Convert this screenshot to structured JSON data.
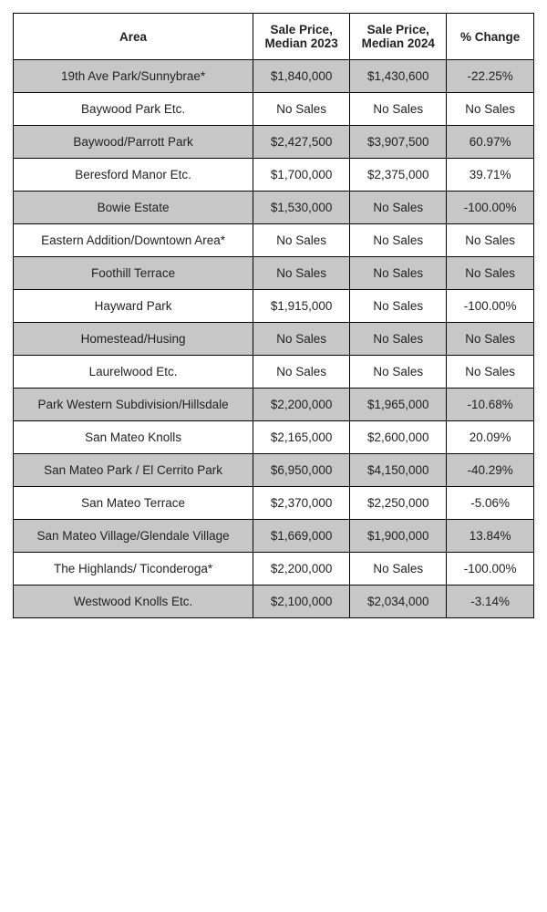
{
  "table": {
    "columns": [
      "Area",
      "Sale Price, Median 2023",
      "Sale Price, Median 2024",
      "% Change"
    ],
    "rows": [
      {
        "area": "19th Ave Park/Sunnybrae*",
        "p2023": "$1,840,000",
        "p2024": "$1,430,600",
        "change": "-22.25%"
      },
      {
        "area": "Baywood Park Etc.",
        "p2023": "No Sales",
        "p2024": "No Sales",
        "change": "No Sales"
      },
      {
        "area": "Baywood/Parrott Park",
        "p2023": "$2,427,500",
        "p2024": "$3,907,500",
        "change": "60.97%"
      },
      {
        "area": "Beresford Manor Etc.",
        "p2023": "$1,700,000",
        "p2024": "$2,375,000",
        "change": "39.71%"
      },
      {
        "area": "Bowie Estate",
        "p2023": "$1,530,000",
        "p2024": "No Sales",
        "change": "-100.00%"
      },
      {
        "area": "Eastern Addition/Downtown Area*",
        "p2023": "No Sales",
        "p2024": "No Sales",
        "change": "No Sales"
      },
      {
        "area": "Foothill Terrace",
        "p2023": "No Sales",
        "p2024": "No Sales",
        "change": "No Sales"
      },
      {
        "area": "Hayward Park",
        "p2023": "$1,915,000",
        "p2024": "No Sales",
        "change": "-100.00%"
      },
      {
        "area": "Homestead/Husing",
        "p2023": "No Sales",
        "p2024": "No Sales",
        "change": "No Sales"
      },
      {
        "area": "Laurelwood Etc.",
        "p2023": "No Sales",
        "p2024": "No Sales",
        "change": "No Sales"
      },
      {
        "area": "Park Western Subdivision/Hillsdale",
        "p2023": "$2,200,000",
        "p2024": "$1,965,000",
        "change": "-10.68%"
      },
      {
        "area": "San Mateo Knolls",
        "p2023": "$2,165,000",
        "p2024": "$2,600,000",
        "change": "20.09%"
      },
      {
        "area": "San Mateo Park / El Cerrito Park",
        "p2023": "$6,950,000",
        "p2024": "$4,150,000",
        "change": "-40.29%"
      },
      {
        "area": "San Mateo Terrace",
        "p2023": "$2,370,000",
        "p2024": "$2,250,000",
        "change": "-5.06%"
      },
      {
        "area": "San Mateo Village/Glendale Village",
        "p2023": "$1,669,000",
        "p2024": "$1,900,000",
        "change": "13.84%"
      },
      {
        "area": "The Highlands/ Ticonderoga*",
        "p2023": "$2,200,000",
        "p2024": "No Sales",
        "change": "-100.00%"
      },
      {
        "area": "Westwood Knolls Etc.",
        "p2023": "$2,100,000",
        "p2024": "$2,034,000",
        "change": "-3.14%"
      }
    ],
    "style": {
      "header_bg": "#ffffff",
      "odd_row_bg": "#c7c7c7",
      "even_row_bg": "#ffffff",
      "border_color": "#000000",
      "font_family": "Arial",
      "cell_fontsize": 13.5,
      "header_fontweight": "bold",
      "text_color": "#222222",
      "col_widths_pct": [
        48,
        18,
        18,
        16
      ],
      "text_align": "center"
    }
  }
}
